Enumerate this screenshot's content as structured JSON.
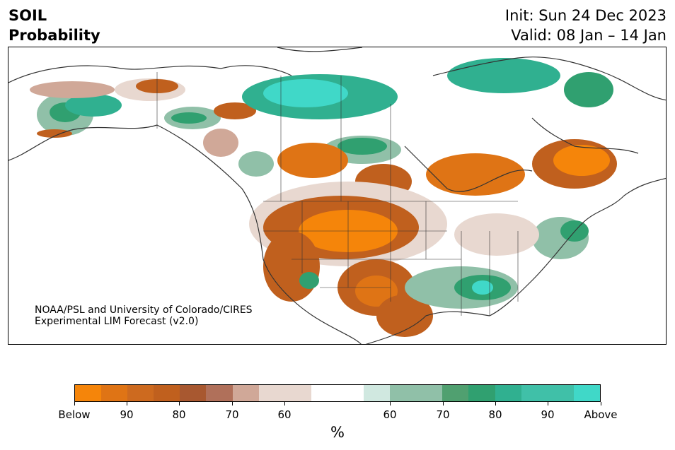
{
  "header": {
    "variable": "SOIL",
    "metric": "Probability",
    "init": "Init: Sun 24 Dec 2023",
    "valid": "Valid: 08 Jan – 14 Jan"
  },
  "credit": {
    "line1": "NOAA/PSL and University of Colorado/CIRES",
    "line2": "Experimental LIM Forecast (v2.0)"
  },
  "colorbar": {
    "unit": "%",
    "colors": [
      "#f5850a",
      "#df7415",
      "#cd6a1f",
      "#c0601e",
      "#a85830",
      "#b0705a",
      "#d0a898",
      "#e8d8d0",
      "#e8d8d0",
      "#ffffff",
      "#ffffff",
      "#d0e8e0",
      "#90c0a8",
      "#90c0a8",
      "#50a070",
      "#30a070",
      "#30b090",
      "#40c0a8",
      "#40c0a8",
      "#40d8c8"
    ],
    "labels": [
      "Below",
      "90",
      "80",
      "70",
      "60",
      "60",
      "70",
      "80",
      "90",
      "Above"
    ]
  },
  "map": {
    "region": "North America",
    "colors": {
      "below_strong": "#f5850a",
      "below_mid": "#c0601e",
      "below_weak": "#b0705a",
      "below_faint": "#e8d8d0",
      "above_faint": "#d0e8e0",
      "above_weak": "#90c0a8",
      "above_mid": "#30a070",
      "above_strong": "#40d8c8",
      "outline": "#333333"
    }
  }
}
